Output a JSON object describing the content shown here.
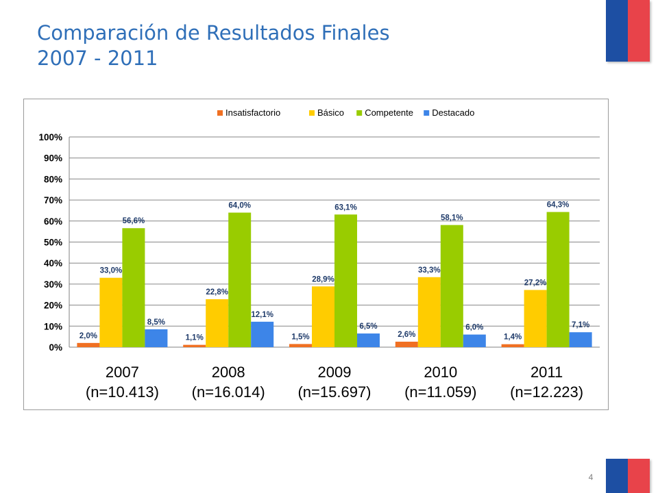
{
  "slide": {
    "title_line1": "Comparación de Resultados Finales",
    "title_line2": "2007 - 2011",
    "page_number": "4"
  },
  "colors": {
    "title": "#2f6fb8",
    "flag_blue": "#1d4fa3",
    "flag_red": "#e8434a"
  },
  "chart_data": {
    "type": "bar",
    "categories": [
      "2007",
      "2008",
      "2009",
      "2010",
      "2011"
    ],
    "category_sublabels": [
      "(n=10.413)",
      "(n=16.014)",
      "(n=15.697)",
      "(n=11.059)",
      "(n=12.223)"
    ],
    "series": [
      {
        "name": "Insatisfactorio",
        "color": "#f07022",
        "values": [
          2.0,
          1.1,
          1.5,
          2.6,
          1.4
        ],
        "labels": [
          "2,0%",
          "1,1%",
          "1,5%",
          "2,6%",
          "1,4%"
        ]
      },
      {
        "name": "Básico",
        "color": "#ffcc00",
        "values": [
          33.0,
          22.8,
          28.9,
          33.3,
          27.2
        ],
        "labels": [
          "33,0%",
          "22,8%",
          "28,9%",
          "33,3%",
          "27,2%"
        ]
      },
      {
        "name": "Competente",
        "color": "#99cc00",
        "values": [
          56.6,
          64.0,
          63.1,
          58.1,
          64.3
        ],
        "labels": [
          "56,6%",
          "64,0%",
          "63,1%",
          "58,1%",
          "64,3%"
        ]
      },
      {
        "name": "Destacado",
        "color": "#3d85e8",
        "values": [
          8.5,
          12.1,
          6.5,
          6.0,
          7.1
        ],
        "labels": [
          "8,5%",
          "12,1%",
          "6,5%",
          "6,0%",
          "7,1%"
        ]
      }
    ],
    "yticks": [
      "0%",
      "10%",
      "20%",
      "30%",
      "40%",
      "50%",
      "60%",
      "70%",
      "80%",
      "90%",
      "100%"
    ],
    "ylim": [
      0,
      100
    ],
    "grid": true,
    "legend": "top",
    "title": "",
    "xlabel": "",
    "ylabel": ""
  }
}
